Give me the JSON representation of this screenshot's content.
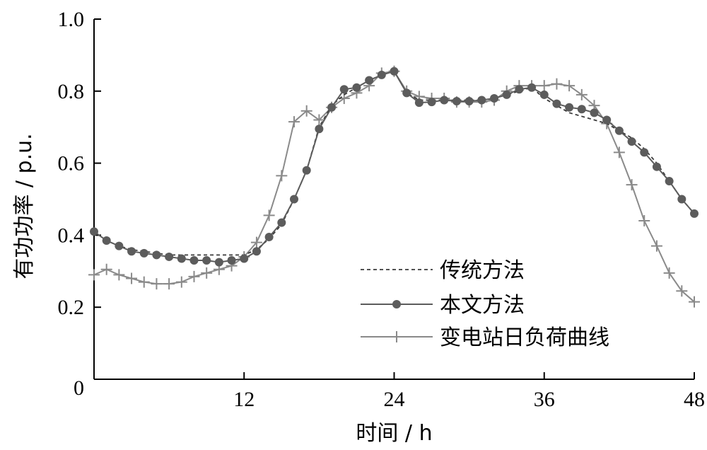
{
  "chart_data": {
    "type": "line",
    "xlabel": "时间 / h",
    "ylabel": "有功功率 / p.u.",
    "xlim": [
      0,
      48
    ],
    "ylim": [
      0,
      1.0
    ],
    "x_ticks": [
      {
        "value": 12,
        "label": "12"
      },
      {
        "value": 24,
        "label": "24"
      },
      {
        "value": 36,
        "label": "36"
      },
      {
        "value": 48,
        "label": "48"
      }
    ],
    "y_ticks": [
      {
        "value": 0.2,
        "label": "0.2"
      },
      {
        "value": 0.4,
        "label": "0.4"
      },
      {
        "value": 0.6,
        "label": "0.6"
      },
      {
        "value": 0.8,
        "label": "0.8"
      },
      {
        "value": 1.0,
        "label": "1.0"
      }
    ],
    "origin_label": "0",
    "grid": false,
    "legend_position": "bottom-right",
    "colors": {
      "traditional": "#3a3a3a",
      "proposed": "#5c5c5c",
      "substation": "#8a8a8a"
    },
    "x": [
      0,
      1,
      2,
      3,
      4,
      5,
      6,
      7,
      8,
      9,
      10,
      11,
      12,
      13,
      14,
      15,
      16,
      17,
      18,
      19,
      20,
      21,
      22,
      23,
      24,
      25,
      26,
      27,
      28,
      29,
      30,
      31,
      32,
      33,
      34,
      35,
      36,
      37,
      38,
      39,
      40,
      41,
      42,
      43,
      44,
      45,
      46,
      47,
      48
    ],
    "series": [
      {
        "name": "传统方法",
        "style": "dashed",
        "values": [
          0.41,
          0.385,
          0.37,
          0.36,
          0.355,
          0.35,
          0.345,
          0.345,
          0.345,
          0.345,
          0.345,
          0.345,
          0.345,
          0.36,
          0.39,
          0.43,
          0.5,
          0.58,
          0.7,
          0.76,
          0.79,
          0.81,
          0.83,
          0.845,
          0.855,
          0.795,
          0.775,
          0.775,
          0.775,
          0.775,
          0.775,
          0.775,
          0.78,
          0.79,
          0.8,
          0.81,
          0.78,
          0.76,
          0.74,
          0.73,
          0.72,
          0.71,
          0.69,
          0.67,
          0.64,
          0.6,
          0.55,
          0.5,
          0.46
        ]
      },
      {
        "name": "本文方法",
        "style": "solid-dot",
        "values": [
          0.41,
          0.385,
          0.37,
          0.355,
          0.35,
          0.345,
          0.34,
          0.335,
          0.33,
          0.33,
          0.325,
          0.33,
          0.335,
          0.355,
          0.395,
          0.435,
          0.5,
          0.58,
          0.695,
          0.755,
          0.805,
          0.81,
          0.83,
          0.845,
          0.855,
          0.795,
          0.768,
          0.77,
          0.775,
          0.772,
          0.772,
          0.775,
          0.78,
          0.79,
          0.805,
          0.81,
          0.79,
          0.765,
          0.755,
          0.75,
          0.74,
          0.72,
          0.69,
          0.66,
          0.63,
          0.59,
          0.55,
          0.5,
          0.46
        ]
      },
      {
        "name": "变电站日负荷曲线",
        "style": "solid-plus",
        "values": [
          0.29,
          0.305,
          0.29,
          0.28,
          0.27,
          0.265,
          0.265,
          0.27,
          0.285,
          0.295,
          0.305,
          0.315,
          0.34,
          0.38,
          0.455,
          0.565,
          0.715,
          0.745,
          0.72,
          0.755,
          0.78,
          0.795,
          0.815,
          0.85,
          0.855,
          0.8,
          0.785,
          0.78,
          0.78,
          0.77,
          0.77,
          0.77,
          0.775,
          0.8,
          0.815,
          0.815,
          0.815,
          0.82,
          0.815,
          0.79,
          0.76,
          0.71,
          0.63,
          0.54,
          0.44,
          0.37,
          0.295,
          0.245,
          0.215
        ]
      }
    ]
  }
}
